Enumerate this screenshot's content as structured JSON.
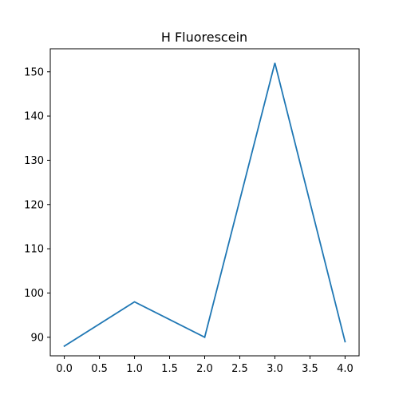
{
  "chart_data": {
    "type": "line",
    "title": "H Fluorescein",
    "xlabel": "",
    "ylabel": "",
    "x": [
      0,
      1,
      2,
      3,
      4
    ],
    "series": [
      {
        "values": [
          88,
          98,
          90,
          152,
          89
        ],
        "color": "#1f77b4"
      }
    ],
    "xlim": [
      -0.2,
      4.2
    ],
    "ylim": [
      85.8,
      155.2
    ],
    "xticks": [
      0.0,
      0.5,
      1.0,
      1.5,
      2.0,
      2.5,
      3.0,
      3.5,
      4.0
    ],
    "xtick_labels": [
      "0.0",
      "0.5",
      "1.0",
      "1.5",
      "2.0",
      "2.5",
      "3.0",
      "3.5",
      "4.0"
    ],
    "yticks": [
      90,
      100,
      110,
      120,
      130,
      140,
      150
    ],
    "ytick_labels": [
      "90",
      "100",
      "110",
      "120",
      "130",
      "140",
      "150"
    ],
    "grid": false,
    "legend": "none"
  }
}
